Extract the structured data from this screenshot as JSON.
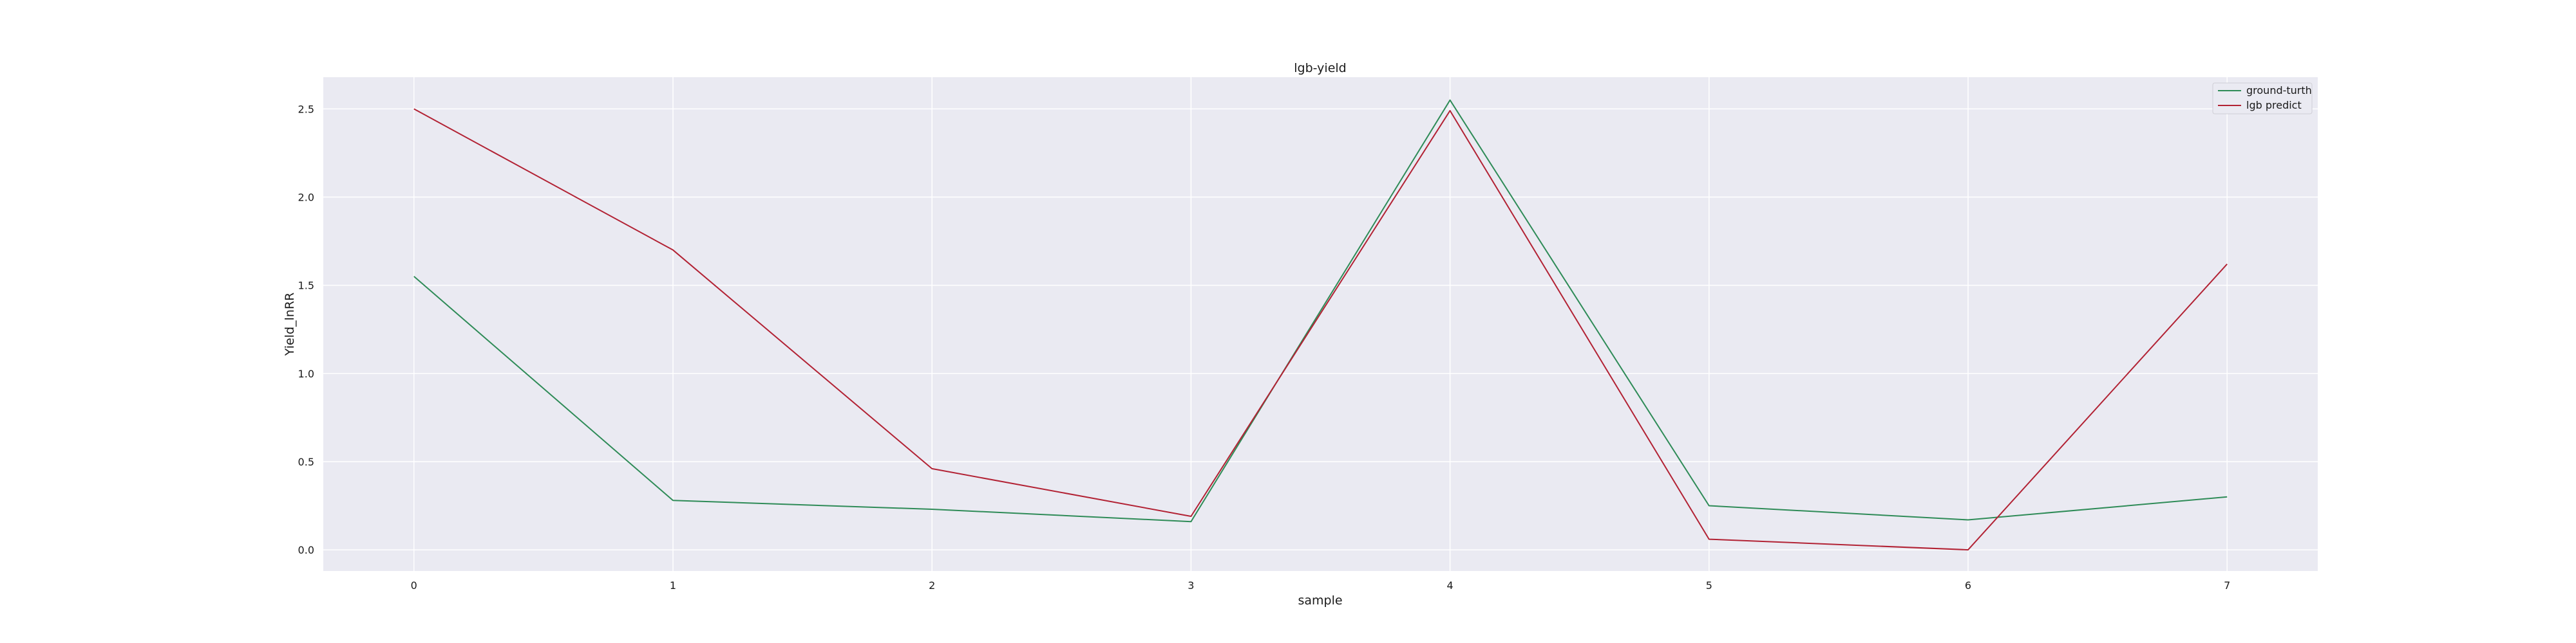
{
  "chart_data": {
    "type": "line",
    "title": "lgb-yield",
    "xlabel": "sample",
    "ylabel": "Yield_lnRR",
    "x": [
      0,
      1,
      2,
      3,
      4,
      5,
      6,
      7
    ],
    "xlim": [
      -0.35,
      7.35
    ],
    "ylim": [
      -0.12,
      2.68
    ],
    "xticks": [
      "0",
      "1",
      "2",
      "3",
      "4",
      "5",
      "6",
      "7"
    ],
    "yticks": [
      "0.0",
      "0.5",
      "1.0",
      "1.5",
      "2.0",
      "2.5"
    ],
    "grid": true,
    "legend_position": "top-right",
    "series": [
      {
        "name": "ground-turth",
        "color": "#2e8b57",
        "values": [
          1.55,
          0.28,
          0.23,
          0.16,
          2.55,
          0.25,
          0.17,
          0.3
        ]
      },
      {
        "name": "lgb predict",
        "color": "#b22234",
        "values": [
          2.5,
          1.7,
          0.46,
          0.19,
          2.49,
          0.06,
          0.0,
          1.62
        ]
      }
    ]
  }
}
